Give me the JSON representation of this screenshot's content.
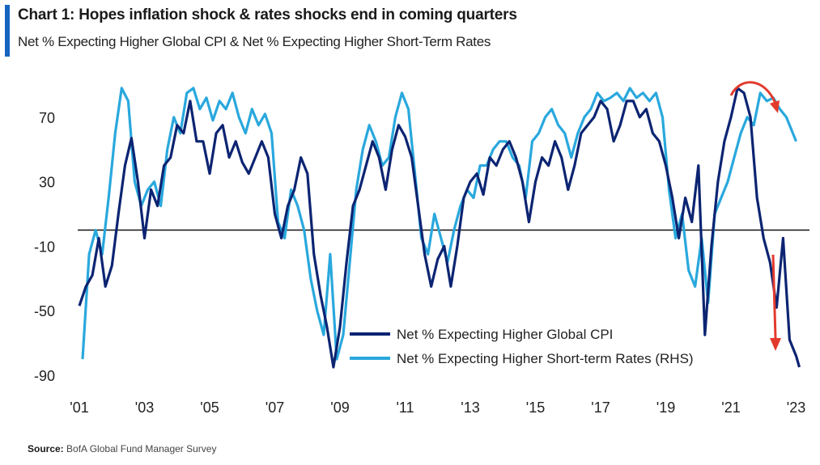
{
  "header": {
    "title": "Chart 1: Hopes inflation shock & rates shocks end in coming quarters",
    "subtitle": "Net % Expecting Higher Global CPI & Net % Expecting Higher Short-Term Rates"
  },
  "source": {
    "label": "Source:",
    "text": "BofA Global Fund Manager Survey"
  },
  "colors": {
    "cpi": "#0c2472",
    "rates": "#29a8dd",
    "arrow": "#e23b2e",
    "accent": "#1565c0",
    "zero_line": "#111111"
  },
  "chart_data": {
    "type": "line",
    "title": "Chart 1: Hopes inflation shock & rates shocks end in coming quarters",
    "subtitle": "Net % Expecting Higher Global CPI & Net % Expecting Higher Short-Term Rates",
    "xlim": [
      2001,
      2023.4
    ],
    "ylim": [
      -92,
      95
    ],
    "x_ticks": [
      "'01",
      "'03",
      "'05",
      "'07",
      "'09",
      "'11",
      "'13",
      "'15",
      "'17",
      "'19",
      "'21",
      "'23"
    ],
    "y_ticks": [
      70,
      30,
      -10,
      -50,
      -90
    ],
    "reference_line": 0,
    "legend_position": "bottom-right",
    "series": [
      {
        "name": "Net % Expecting Higher Global CPI",
        "axis": "left",
        "points": [
          [
            2001.0,
            -47
          ],
          [
            2001.2,
            -35
          ],
          [
            2001.4,
            -28
          ],
          [
            2001.6,
            -5
          ],
          [
            2001.8,
            -35
          ],
          [
            2002.0,
            -22
          ],
          [
            2002.2,
            10
          ],
          [
            2002.4,
            40
          ],
          [
            2002.6,
            57
          ],
          [
            2002.8,
            30
          ],
          [
            2003.0,
            -5
          ],
          [
            2003.2,
            25
          ],
          [
            2003.4,
            15
          ],
          [
            2003.6,
            40
          ],
          [
            2003.8,
            45
          ],
          [
            2004.0,
            65
          ],
          [
            2004.2,
            60
          ],
          [
            2004.4,
            80
          ],
          [
            2004.6,
            55
          ],
          [
            2004.8,
            55
          ],
          [
            2005.0,
            35
          ],
          [
            2005.2,
            60
          ],
          [
            2005.4,
            65
          ],
          [
            2005.6,
            45
          ],
          [
            2005.8,
            55
          ],
          [
            2006.0,
            42
          ],
          [
            2006.2,
            35
          ],
          [
            2006.4,
            45
          ],
          [
            2006.6,
            55
          ],
          [
            2006.8,
            45
          ],
          [
            2007.0,
            10
          ],
          [
            2007.2,
            -5
          ],
          [
            2007.4,
            15
          ],
          [
            2007.6,
            25
          ],
          [
            2007.8,
            45
          ],
          [
            2008.0,
            35
          ],
          [
            2008.2,
            -15
          ],
          [
            2008.4,
            -40
          ],
          [
            2008.6,
            -60
          ],
          [
            2008.8,
            -85
          ],
          [
            2009.0,
            -60
          ],
          [
            2009.2,
            -20
          ],
          [
            2009.4,
            15
          ],
          [
            2009.6,
            25
          ],
          [
            2009.8,
            40
          ],
          [
            2010.0,
            55
          ],
          [
            2010.2,
            45
          ],
          [
            2010.4,
            25
          ],
          [
            2010.6,
            50
          ],
          [
            2010.8,
            65
          ],
          [
            2011.0,
            58
          ],
          [
            2011.2,
            45
          ],
          [
            2011.4,
            15
          ],
          [
            2011.6,
            -15
          ],
          [
            2011.8,
            -35
          ],
          [
            2012.0,
            -18
          ],
          [
            2012.2,
            -10
          ],
          [
            2012.4,
            -35
          ],
          [
            2012.6,
            -10
          ],
          [
            2012.8,
            20
          ],
          [
            2013.0,
            30
          ],
          [
            2013.2,
            35
          ],
          [
            2013.4,
            22
          ],
          [
            2013.6,
            45
          ],
          [
            2013.8,
            40
          ],
          [
            2014.0,
            50
          ],
          [
            2014.2,
            55
          ],
          [
            2014.4,
            45
          ],
          [
            2014.6,
            30
          ],
          [
            2014.8,
            5
          ],
          [
            2015.0,
            30
          ],
          [
            2015.2,
            45
          ],
          [
            2015.4,
            40
          ],
          [
            2015.6,
            55
          ],
          [
            2015.8,
            45
          ],
          [
            2016.0,
            25
          ],
          [
            2016.2,
            40
          ],
          [
            2016.4,
            60
          ],
          [
            2016.6,
            65
          ],
          [
            2016.8,
            70
          ],
          [
            2017.0,
            80
          ],
          [
            2017.2,
            75
          ],
          [
            2017.4,
            55
          ],
          [
            2017.6,
            65
          ],
          [
            2017.8,
            80
          ],
          [
            2018.0,
            80
          ],
          [
            2018.2,
            70
          ],
          [
            2018.4,
            75
          ],
          [
            2018.6,
            60
          ],
          [
            2018.8,
            55
          ],
          [
            2019.0,
            40
          ],
          [
            2019.2,
            20
          ],
          [
            2019.4,
            -5
          ],
          [
            2019.6,
            20
          ],
          [
            2019.8,
            5
          ],
          [
            2020.0,
            40
          ],
          [
            2020.2,
            -65
          ],
          [
            2020.4,
            -10
          ],
          [
            2020.6,
            30
          ],
          [
            2020.8,
            55
          ],
          [
            2021.0,
            70
          ],
          [
            2021.2,
            88
          ],
          [
            2021.4,
            85
          ],
          [
            2021.6,
            70
          ],
          [
            2021.8,
            20
          ],
          [
            2022.0,
            -5
          ],
          [
            2022.2,
            -20
          ],
          [
            2022.4,
            -48
          ],
          [
            2022.6,
            -5
          ],
          [
            2022.8,
            -68
          ],
          [
            2023.0,
            -78
          ],
          [
            2023.1,
            -85
          ]
        ]
      },
      {
        "name": "Net % Expecting Higher Short-term Rates (RHS)",
        "axis": "right",
        "points": [
          [
            2001.1,
            -80
          ],
          [
            2001.3,
            -15
          ],
          [
            2001.5,
            0
          ],
          [
            2001.7,
            -15
          ],
          [
            2001.9,
            20
          ],
          [
            2002.1,
            60
          ],
          [
            2002.3,
            88
          ],
          [
            2002.5,
            80
          ],
          [
            2002.7,
            30
          ],
          [
            2002.9,
            15
          ],
          [
            2003.1,
            25
          ],
          [
            2003.3,
            30
          ],
          [
            2003.5,
            15
          ],
          [
            2003.7,
            50
          ],
          [
            2003.9,
            70
          ],
          [
            2004.1,
            60
          ],
          [
            2004.3,
            85
          ],
          [
            2004.5,
            88
          ],
          [
            2004.7,
            75
          ],
          [
            2004.9,
            82
          ],
          [
            2005.1,
            68
          ],
          [
            2005.3,
            80
          ],
          [
            2005.5,
            75
          ],
          [
            2005.7,
            85
          ],
          [
            2005.9,
            70
          ],
          [
            2006.1,
            60
          ],
          [
            2006.3,
            75
          ],
          [
            2006.5,
            65
          ],
          [
            2006.7,
            72
          ],
          [
            2006.9,
            60
          ],
          [
            2007.1,
            5
          ],
          [
            2007.3,
            -5
          ],
          [
            2007.5,
            25
          ],
          [
            2007.7,
            15
          ],
          [
            2007.9,
            0
          ],
          [
            2008.1,
            -30
          ],
          [
            2008.3,
            -50
          ],
          [
            2008.5,
            -65
          ],
          [
            2008.7,
            -15
          ],
          [
            2008.9,
            -80
          ],
          [
            2009.1,
            -65
          ],
          [
            2009.3,
            -20
          ],
          [
            2009.5,
            25
          ],
          [
            2009.7,
            50
          ],
          [
            2009.9,
            65
          ],
          [
            2010.1,
            55
          ],
          [
            2010.3,
            40
          ],
          [
            2010.5,
            45
          ],
          [
            2010.7,
            70
          ],
          [
            2010.9,
            85
          ],
          [
            2011.1,
            75
          ],
          [
            2011.3,
            35
          ],
          [
            2011.5,
            -5
          ],
          [
            2011.7,
            -15
          ],
          [
            2011.9,
            10
          ],
          [
            2012.1,
            -5
          ],
          [
            2012.3,
            -20
          ],
          [
            2012.5,
            0
          ],
          [
            2012.7,
            15
          ],
          [
            2012.9,
            25
          ],
          [
            2013.1,
            20
          ],
          [
            2013.3,
            40
          ],
          [
            2013.5,
            40
          ],
          [
            2013.7,
            50
          ],
          [
            2013.9,
            55
          ],
          [
            2014.1,
            55
          ],
          [
            2014.3,
            45
          ],
          [
            2014.5,
            40
          ],
          [
            2014.7,
            20
          ],
          [
            2014.9,
            55
          ],
          [
            2015.1,
            60
          ],
          [
            2015.3,
            70
          ],
          [
            2015.5,
            75
          ],
          [
            2015.7,
            65
          ],
          [
            2015.9,
            60
          ],
          [
            2016.1,
            45
          ],
          [
            2016.3,
            60
          ],
          [
            2016.5,
            70
          ],
          [
            2016.7,
            75
          ],
          [
            2016.9,
            85
          ],
          [
            2017.1,
            80
          ],
          [
            2017.3,
            82
          ],
          [
            2017.5,
            85
          ],
          [
            2017.7,
            80
          ],
          [
            2017.9,
            88
          ],
          [
            2018.1,
            82
          ],
          [
            2018.3,
            85
          ],
          [
            2018.5,
            80
          ],
          [
            2018.7,
            85
          ],
          [
            2018.9,
            70
          ],
          [
            2019.1,
            25
          ],
          [
            2019.3,
            -5
          ],
          [
            2019.5,
            10
          ],
          [
            2019.7,
            -25
          ],
          [
            2019.9,
            -35
          ],
          [
            2020.1,
            -5
          ],
          [
            2020.3,
            -45
          ],
          [
            2020.5,
            10
          ],
          [
            2020.7,
            20
          ],
          [
            2020.9,
            30
          ],
          [
            2021.1,
            45
          ],
          [
            2021.3,
            60
          ],
          [
            2021.5,
            70
          ],
          [
            2021.7,
            65
          ],
          [
            2021.9,
            85
          ],
          [
            2022.1,
            80
          ],
          [
            2022.3,
            82
          ],
          [
            2022.5,
            75
          ],
          [
            2022.7,
            70
          ],
          [
            2022.9,
            60
          ],
          [
            2023.0,
            55
          ]
        ]
      }
    ]
  }
}
